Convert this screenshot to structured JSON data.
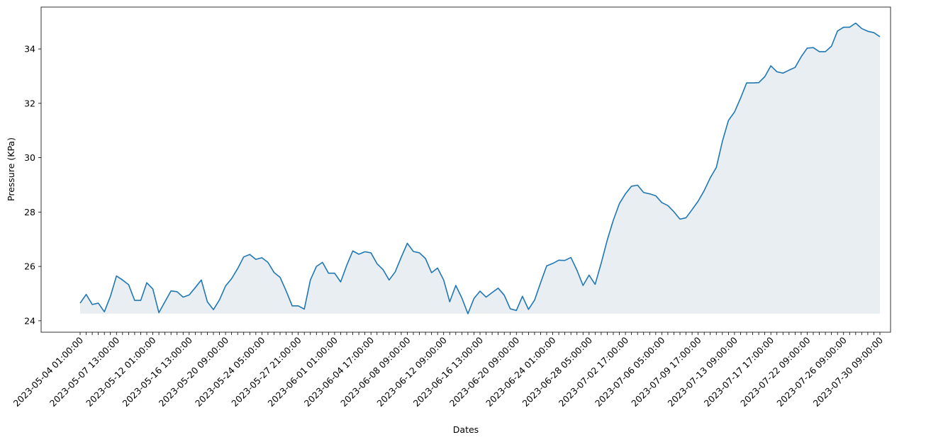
{
  "chart_data": {
    "type": "line",
    "x_label": "Dates",
    "y_label": "Pressure (KPa)",
    "categories": [
      "2023-05-04 01:00:00",
      null,
      null,
      null,
      null,
      null,
      "2023-05-07 13:00:00",
      null,
      null,
      null,
      null,
      null,
      "2023-05-12 01:00:00",
      null,
      null,
      null,
      null,
      null,
      "2023-05-16 13:00:00",
      null,
      null,
      null,
      null,
      null,
      "2023-05-20 09:00:00",
      null,
      null,
      null,
      null,
      null,
      "2023-05-24 05:00:00",
      null,
      null,
      null,
      null,
      null,
      "2023-05-27 21:00:00",
      null,
      null,
      null,
      null,
      null,
      "2023-06-01 01:00:00",
      null,
      null,
      null,
      null,
      null,
      "2023-06-04 17:00:00",
      null,
      null,
      null,
      null,
      null,
      "2023-06-08 09:00:00",
      null,
      null,
      null,
      null,
      null,
      "2023-06-12 09:00:00",
      null,
      null,
      null,
      null,
      null,
      "2023-06-16 13:00:00",
      null,
      null,
      null,
      null,
      null,
      "2023-06-20 09:00:00",
      null,
      null,
      null,
      null,
      null,
      "2023-06-24 01:00:00",
      null,
      null,
      null,
      null,
      null,
      "2023-06-28 05:00:00",
      null,
      null,
      null,
      null,
      null,
      "2023-07-02 17:00:00",
      null,
      null,
      null,
      null,
      null,
      "2023-07-06 05:00:00",
      null,
      null,
      null,
      null,
      null,
      "2023-07-09 17:00:00",
      null,
      null,
      null,
      null,
      null,
      "2023-07-13 09:00:00",
      null,
      null,
      null,
      null,
      null,
      "2023-07-17 17:00:00",
      null,
      null,
      null,
      null,
      null,
      "2023-07-22 09:00:00",
      null,
      null,
      null,
      null,
      null,
      "2023-07-26 09:00:00",
      null,
      null,
      null,
      null,
      null,
      "2023-07-30 09:00:00"
    ],
    "values": [
      24.65,
      24.97,
      24.6,
      24.65,
      24.33,
      24.9,
      25.65,
      25.5,
      25.33,
      24.75,
      24.75,
      25.4,
      25.17,
      24.3,
      24.7,
      25.1,
      25.07,
      24.87,
      24.95,
      25.22,
      25.5,
      24.7,
      24.41,
      24.77,
      25.28,
      25.55,
      25.92,
      26.35,
      26.44,
      26.26,
      26.32,
      26.15,
      25.78,
      25.6,
      25.1,
      24.55,
      24.55,
      24.43,
      25.5,
      26.0,
      26.15,
      25.75,
      25.75,
      25.43,
      26.04,
      26.57,
      26.45,
      26.54,
      26.5,
      26.1,
      25.88,
      25.5,
      25.8,
      26.34,
      26.85,
      26.55,
      26.5,
      26.29,
      25.77,
      25.94,
      25.5,
      24.7,
      25.3,
      24.84,
      24.26,
      24.82,
      25.09,
      24.87,
      25.04,
      25.2,
      24.94,
      24.44,
      24.38,
      24.9,
      24.42,
      24.76,
      25.4,
      26.02,
      26.11,
      26.23,
      26.22,
      26.33,
      25.86,
      25.3,
      25.68,
      25.34,
      26.12,
      26.97,
      27.7,
      28.31,
      28.67,
      28.95,
      28.99,
      28.72,
      28.67,
      28.6,
      28.35,
      28.24,
      28.01,
      27.74,
      27.79,
      28.09,
      28.4,
      28.79,
      29.26,
      29.64,
      30.6,
      31.37,
      31.68,
      32.19,
      32.75,
      32.75,
      32.76,
      32.98,
      33.38,
      33.16,
      33.11,
      33.22,
      33.32,
      33.71,
      34.03,
      34.05,
      33.9,
      33.9,
      34.1,
      34.66,
      34.8,
      34.8,
      34.95,
      34.75,
      34.65,
      34.6,
      34.45
    ],
    "color": "#1f77b4",
    "fill_color": "#e8eef1",
    "ylim": [
      23.58,
      35.54
    ],
    "yticks": [
      24,
      26,
      28,
      30,
      32,
      34
    ]
  }
}
